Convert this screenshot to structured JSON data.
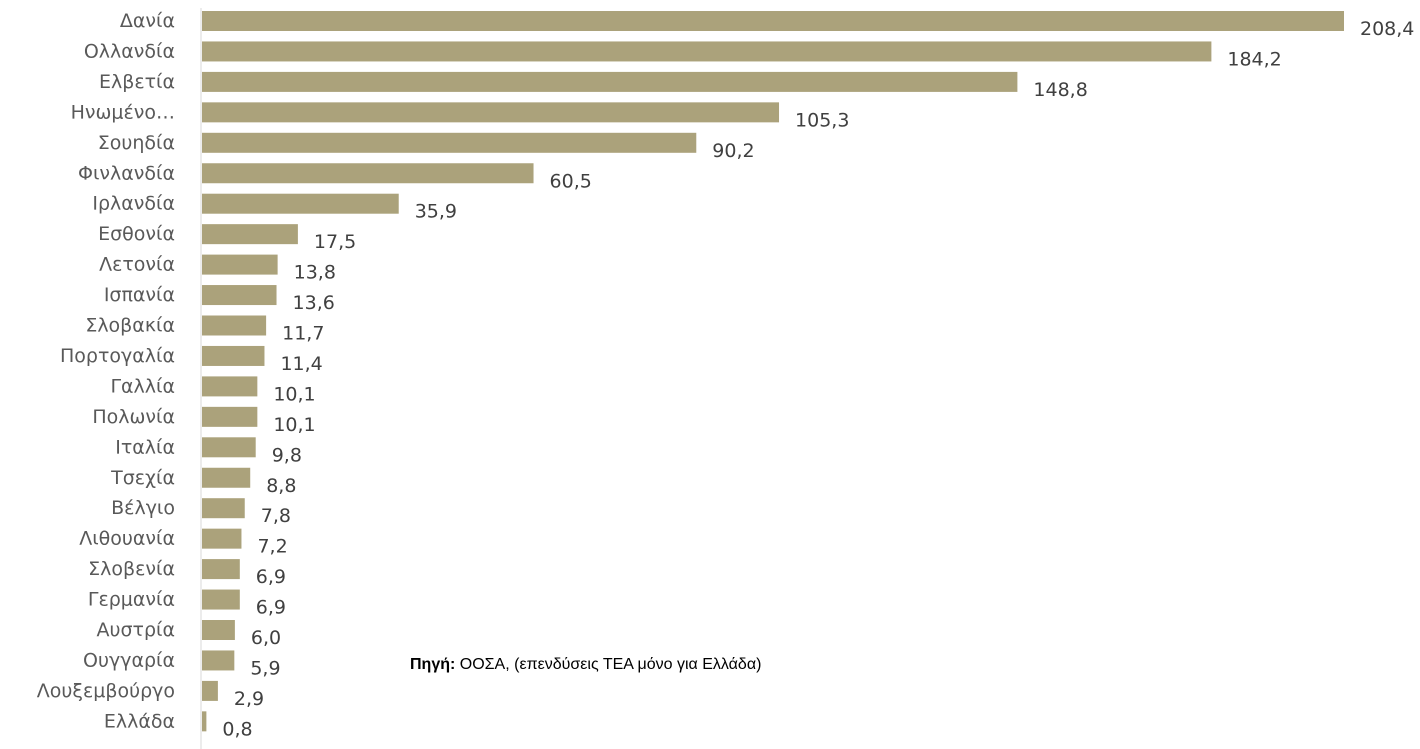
{
  "chart_data": {
    "type": "bar",
    "orientation": "horizontal",
    "categories": [
      "Δανία",
      "Ολλανδία",
      "Ελβετία",
      "Ηνωμένο…",
      "Σουηδία",
      "Φινλανδία",
      "Ιρλανδία",
      "Εσθονία",
      "Λετονία",
      "Ισπανία",
      "Σλοβακία",
      "Πορτογαλία",
      "Γαλλία",
      "Πολωνία",
      "Ιταλία",
      "Τσεχία",
      "Βέλγιο",
      "Λιθουανία",
      "Σλοβενία",
      "Γερμανία",
      "Αυστρία",
      "Ουγγαρία",
      "Λουξεμβούργο",
      "Ελλάδα"
    ],
    "values": [
      208.4,
      184.2,
      148.8,
      105.3,
      90.2,
      60.5,
      35.9,
      17.5,
      13.8,
      13.6,
      11.7,
      11.4,
      10.1,
      10.1,
      9.8,
      8.8,
      7.8,
      7.2,
      6.9,
      6.9,
      6.0,
      5.9,
      2.9,
      0.8
    ],
    "value_labels": [
      "208,4",
      "184,2",
      "148,8",
      "105,3",
      "90,2",
      "60,5",
      "35,9",
      "17,5",
      "13,8",
      "13,6",
      "11,7",
      "11,4",
      "10,1",
      "10,1",
      "9,8",
      "8,8",
      "7,8",
      "7,2",
      "6,9",
      "6,9",
      "6,0",
      "5,9",
      "2,9",
      "0,8"
    ],
    "xlim": [
      0,
      208.4
    ],
    "grid": false,
    "bar_color": "#ABA27B",
    "axis_color": "#D9D9D9"
  },
  "source": {
    "label": "Πηγή:",
    "text": " ΟΟΣΑ, (επενδύσεις ΤΕΑ μόνο για Ελλάδα)"
  }
}
